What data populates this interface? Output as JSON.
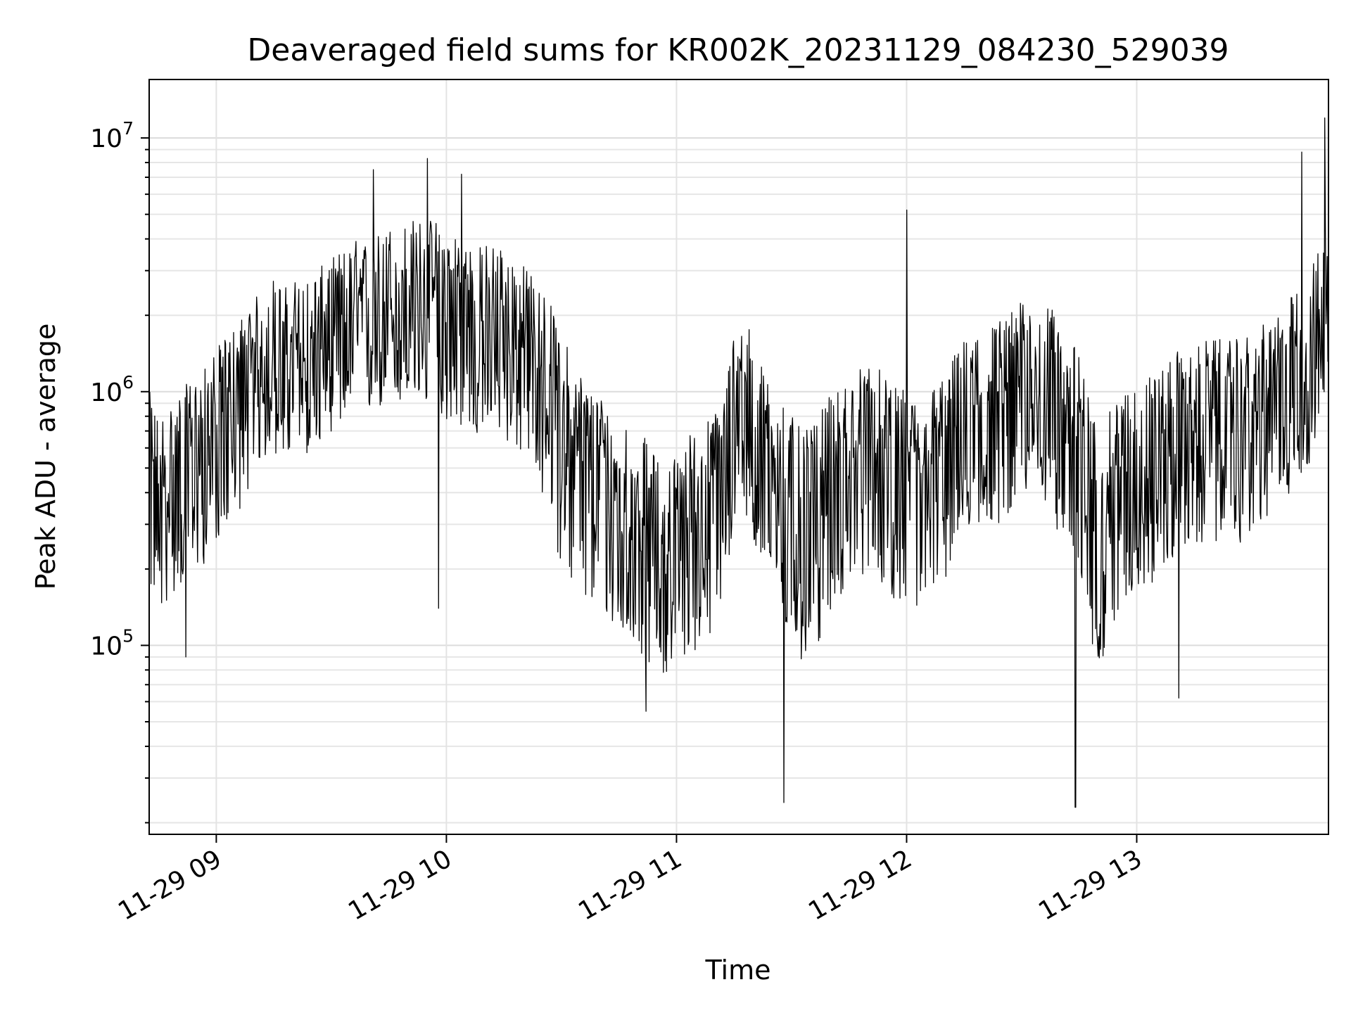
{
  "chart_data": {
    "type": "line",
    "title": "Deaveraged field sums for KR002K_20231129_084230_529039",
    "xlabel": "Time",
    "ylabel": "Peak ADU - average",
    "yscale": "log",
    "xlim": [
      "2023-11-29 08:42:30",
      "2023-11-29 13:50:00"
    ],
    "ylim": [
      18000,
      17000000
    ],
    "grid": true,
    "line_color": "#000000",
    "x_ticks": [
      {
        "label": "11-29 09",
        "value": "2023-11-29 09:00:00"
      },
      {
        "label": "11-29 10",
        "value": "2023-11-29 10:00:00"
      },
      {
        "label": "11-29 11",
        "value": "2023-11-29 11:00:00"
      },
      {
        "label": "11-29 12",
        "value": "2023-11-29 12:00:00"
      },
      {
        "label": "11-29 13",
        "value": "2023-11-29 13:00:00"
      }
    ],
    "y_ticks": [
      {
        "base": "10",
        "exp": "5",
        "value": 100000
      },
      {
        "base": "10",
        "exp": "6",
        "value": 1000000
      },
      {
        "base": "10",
        "exp": "7",
        "value": 10000000
      }
    ],
    "series": [
      {
        "x": [
          "2023-11-29 08:42:30",
          "2023-11-29 08:45",
          "2023-11-29 08:48",
          "2023-11-29 08:51",
          "2023-11-29 08:54",
          "2023-11-29 08:57",
          "2023-11-29 09:00",
          "2023-11-29 09:03",
          "2023-11-29 09:06",
          "2023-11-29 09:09",
          "2023-11-29 09:12",
          "2023-11-29 09:15",
          "2023-11-29 09:18",
          "2023-11-29 09:21",
          "2023-11-29 09:24",
          "2023-11-29 09:27",
          "2023-11-29 09:30",
          "2023-11-29 09:33",
          "2023-11-29 09:36",
          "2023-11-29 09:39",
          "2023-11-29 09:42",
          "2023-11-29 09:45",
          "2023-11-29 09:48",
          "2023-11-29 09:51",
          "2023-11-29 09:54",
          "2023-11-29 09:57",
          "2023-11-29 10:00",
          "2023-11-29 10:03",
          "2023-11-29 10:06",
          "2023-11-29 10:09",
          "2023-11-29 10:12",
          "2023-11-29 10:15",
          "2023-11-29 10:18",
          "2023-11-29 10:21",
          "2023-11-29 10:24",
          "2023-11-29 10:27",
          "2023-11-29 10:30",
          "2023-11-29 10:33",
          "2023-11-29 10:36",
          "2023-11-29 10:39",
          "2023-11-29 10:42",
          "2023-11-29 10:45",
          "2023-11-29 10:48",
          "2023-11-29 10:51",
          "2023-11-29 10:54",
          "2023-11-29 10:57",
          "2023-11-29 11:00",
          "2023-11-29 11:03",
          "2023-11-29 11:06",
          "2023-11-29 11:09",
          "2023-11-29 11:12",
          "2023-11-29 11:15",
          "2023-11-29 11:18",
          "2023-11-29 11:21",
          "2023-11-29 11:24",
          "2023-11-29 11:27",
          "2023-11-29 11:30",
          "2023-11-29 11:33",
          "2023-11-29 11:36",
          "2023-11-29 11:39",
          "2023-11-29 11:42",
          "2023-11-29 11:45",
          "2023-11-29 11:48",
          "2023-11-29 11:51",
          "2023-11-29 11:54",
          "2023-11-29 11:57",
          "2023-11-29 12:00",
          "2023-11-29 12:03",
          "2023-11-29 12:06",
          "2023-11-29 12:09",
          "2023-11-29 12:12",
          "2023-11-29 12:15",
          "2023-11-29 12:18",
          "2023-11-29 12:21",
          "2023-11-29 12:24",
          "2023-11-29 12:27",
          "2023-11-29 12:30",
          "2023-11-29 12:33",
          "2023-11-29 12:36",
          "2023-11-29 12:39",
          "2023-11-29 12:42",
          "2023-11-29 12:45",
          "2023-11-29 12:48",
          "2023-11-29 12:51",
          "2023-11-29 12:54",
          "2023-11-29 12:57",
          "2023-11-29 13:00",
          "2023-11-29 13:03",
          "2023-11-29 13:06",
          "2023-11-29 13:09",
          "2023-11-29 13:12",
          "2023-11-29 13:15",
          "2023-11-29 13:18",
          "2023-11-29 13:21",
          "2023-11-29 13:24",
          "2023-11-29 13:27",
          "2023-11-29 13:30",
          "2023-11-29 13:33",
          "2023-11-29 13:36",
          "2023-11-29 13:39",
          "2023-11-29 13:42",
          "2023-11-29 13:45",
          "2023-11-29 13:48",
          "2023-11-29 13:50"
        ],
        "y": [
          500000,
          350000,
          400000,
          450000,
          550000,
          600000,
          700000,
          800000,
          900000,
          1000000,
          1200000,
          1300000,
          1200000,
          1300000,
          1300000,
          1400000,
          1600000,
          1700000,
          1800000,
          1800000,
          1900000,
          2000000,
          2000000,
          2100000,
          2100000,
          2100000,
          2000000,
          1900000,
          1800000,
          1700000,
          1800000,
          1700000,
          1600000,
          1400000,
          1300000,
          1100000,
          800000,
          600000,
          500000,
          450000,
          400000,
          350000,
          330000,
          300000,
          250000,
          230000,
          250000,
          300000,
          330000,
          350000,
          400000,
          800000,
          900000,
          600000,
          500000,
          450000,
          350000,
          300000,
          330000,
          400000,
          450000,
          500000,
          550000,
          600000,
          500000,
          450000,
          450000,
          400000,
          450000,
          500000,
          600000,
          700000,
          800000,
          800000,
          850000,
          900000,
          1000000,
          1000000,
          950000,
          900000,
          800000,
          600000,
          400000,
          300000,
          400000,
          450000,
          500000,
          500000,
          550000,
          600000,
          650000,
          650000,
          700000,
          700000,
          700000,
          700000,
          750000,
          800000,
          900000,
          1000000,
          1100000,
          1300000,
          1700000,
          2500000
        ],
        "lo": [
          200000,
          150000,
          180000,
          200000,
          220000,
          250000,
          300000,
          350000,
          400000,
          500000,
          600000,
          650000,
          600000,
          650000,
          650000,
          700000,
          800000,
          850000,
          900000,
          900000,
          950000,
          1000000,
          1000000,
          1000000,
          1000000,
          1000000,
          900000,
          850000,
          800000,
          750000,
          800000,
          750000,
          700000,
          600000,
          500000,
          400000,
          250000,
          200000,
          180000,
          160000,
          150000,
          130000,
          120000,
          110000,
          100000,
          90000,
          100000,
          110000,
          120000,
          130000,
          150000,
          350000,
          400000,
          250000,
          200000,
          150000,
          120000,
          100000,
          110000,
          150000,
          180000,
          200000,
          220000,
          250000,
          200000,
          180000,
          180000,
          150000,
          180000,
          200000,
          250000,
          300000,
          350000,
          350000,
          350000,
          400000,
          450000,
          450000,
          400000,
          350000,
          300000,
          200000,
          120000,
          100000,
          150000,
          180000,
          200000,
          200000,
          220000,
          250000,
          280000,
          280000,
          300000,
          300000,
          300000,
          300000,
          320000,
          350000,
          400000,
          450000,
          500000,
          600000,
          800000,
          1200000
        ],
        "hi": [
          900000,
          700000,
          800000,
          900000,
          1000000,
          1100000,
          1300000,
          1500000,
          1700000,
          2000000,
          2200000,
          2500000,
          2300000,
          2500000,
          2500000,
          2700000,
          3000000,
          3200000,
          3500000,
          3500000,
          3700000,
          4000000,
          4000000,
          4200000,
          4200000,
          4200000,
          4000000,
          3800000,
          3500000,
          3300000,
          3500000,
          3300000,
          3000000,
          2700000,
          2500000,
          2000000,
          1500000,
          1200000,
          1000000,
          900000,
          800000,
          700000,
          650000,
          600000,
          500000,
          450000,
          500000,
          600000,
          650000,
          700000,
          800000,
          1600000,
          1800000,
          1200000,
          1000000,
          900000,
          700000,
          600000,
          650000,
          800000,
          900000,
          1000000,
          1100000,
          1200000,
          1000000,
          900000,
          900000,
          800000,
          900000,
          1000000,
          1200000,
          1400000,
          1600000,
          1600000,
          1700000,
          1800000,
          2000000,
          2000000,
          1900000,
          1800000,
          1600000,
          1200000,
          800000,
          600000,
          800000,
          900000,
          1000000,
          1000000,
          1100000,
          1200000,
          1300000,
          1300000,
          1400000,
          1400000,
          1400000,
          1400000,
          1500000,
          1600000,
          1800000,
          2000000,
          2200000,
          2600000,
          3400000,
          5000000
        ]
      }
    ],
    "spikes": [
      {
        "x": "2023-11-29 08:52",
        "y": 90000
      },
      {
        "x": "2023-11-29 09:41",
        "y": 7500000
      },
      {
        "x": "2023-11-29 09:55",
        "y": 8300000
      },
      {
        "x": "2023-11-29 09:58",
        "y": 140000
      },
      {
        "x": "2023-11-29 10:04",
        "y": 7200000
      },
      {
        "x": "2023-11-29 10:52",
        "y": 55000
      },
      {
        "x": "2023-11-29 11:28",
        "y": 24000
      },
      {
        "x": "2023-11-29 12:00",
        "y": 5200000
      },
      {
        "x": "2023-11-29 12:44",
        "y": 23000
      },
      {
        "x": "2023-11-29 13:11",
        "y": 62000
      },
      {
        "x": "2023-11-29 13:43",
        "y": 8800000
      },
      {
        "x": "2023-11-29 13:49",
        "y": 12000000
      }
    ]
  }
}
